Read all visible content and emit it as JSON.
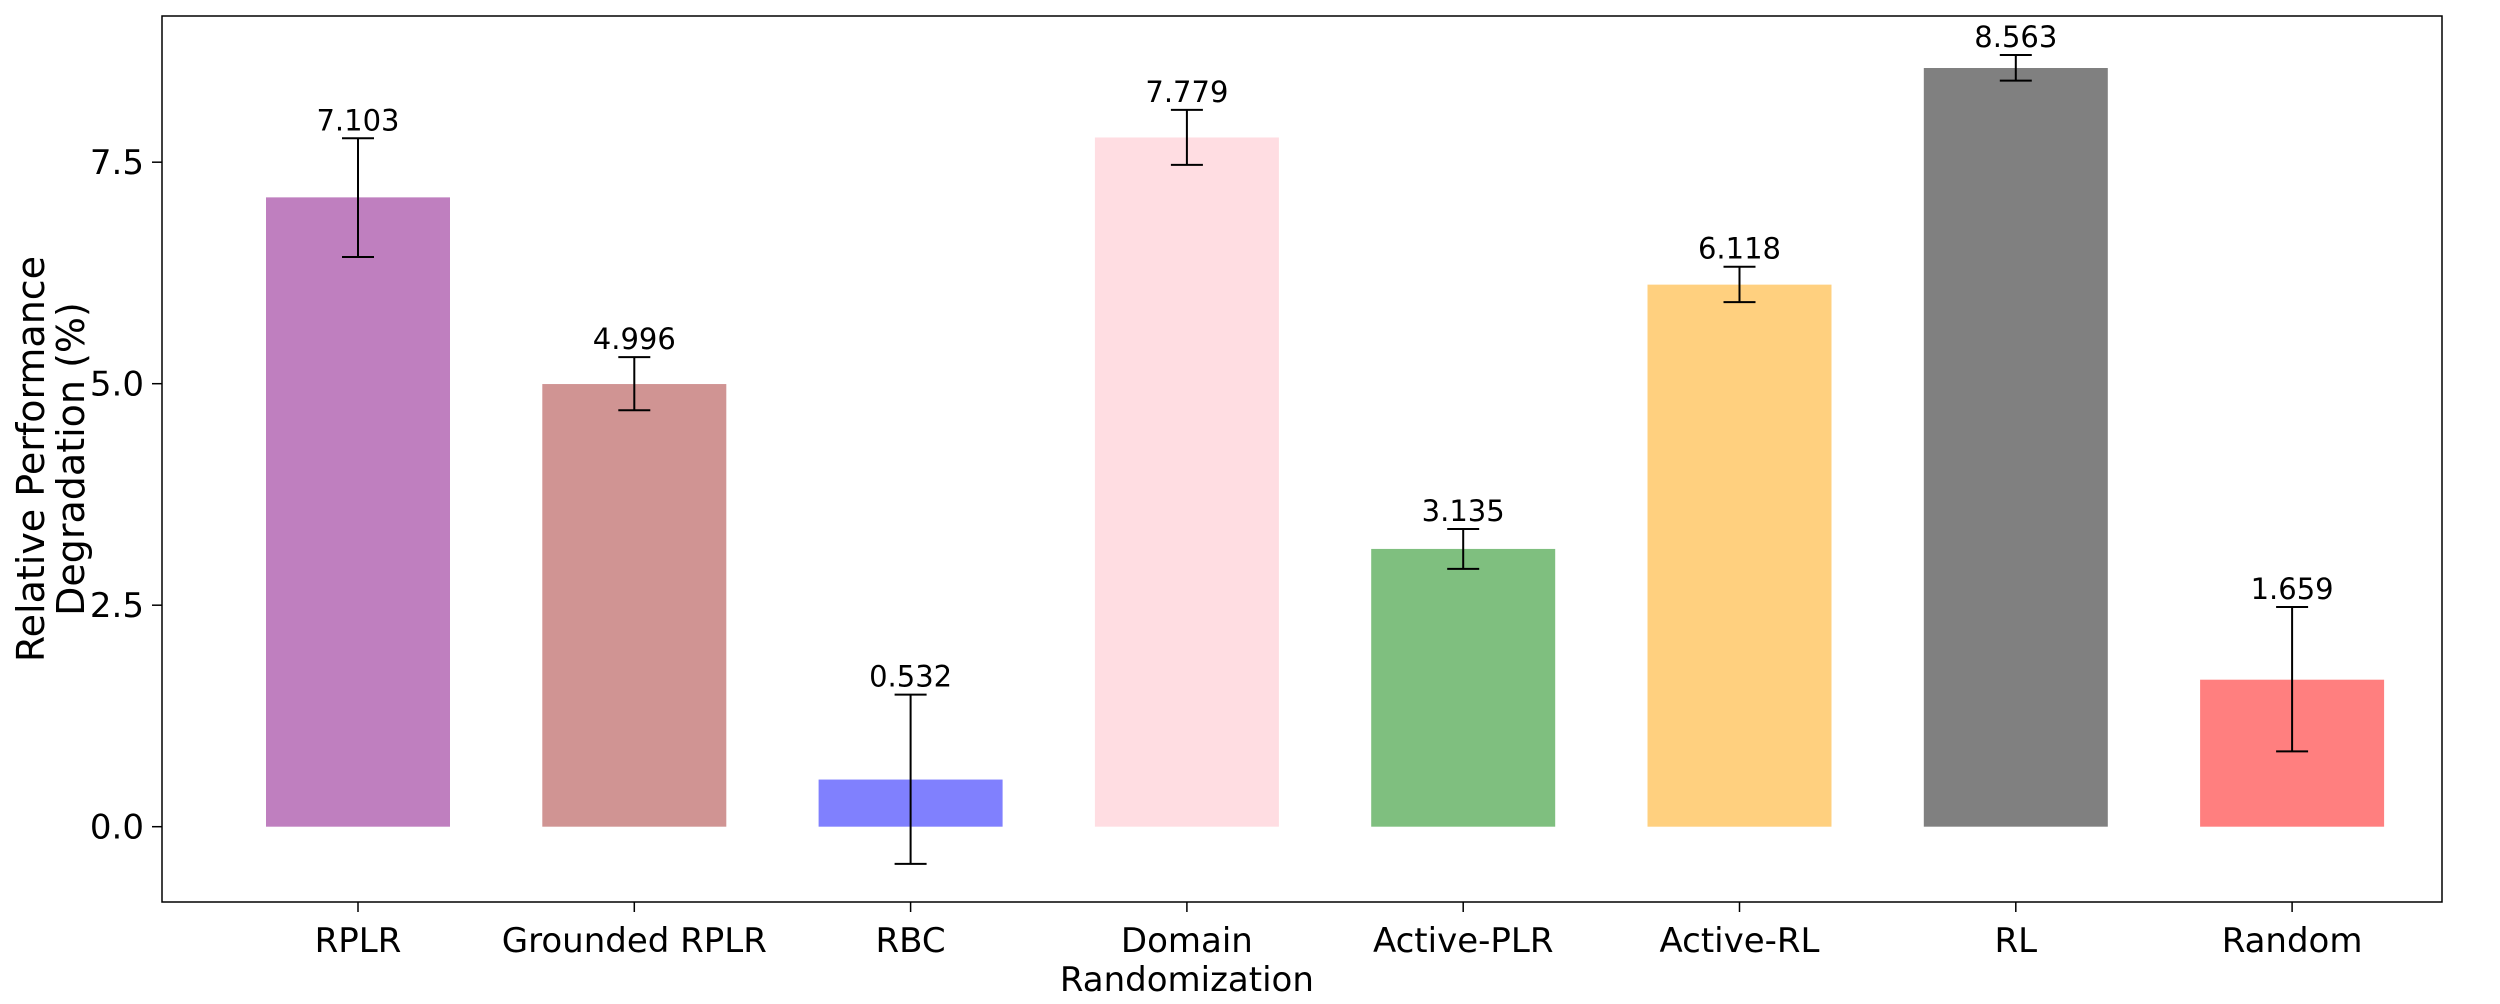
{
  "chart_data": {
    "type": "bar",
    "title": "",
    "xlabel": "",
    "ylabel": [
      "Relative Performance",
      "Degradation (%)"
    ],
    "ylim": [
      -0.85,
      9.15
    ],
    "yticks": [
      "0.0",
      "2.5",
      "5.0",
      "7.5"
    ],
    "ytick_values": [
      0.0,
      2.5,
      5.0,
      7.5
    ],
    "grid": false,
    "legend": "none",
    "categories": [
      [
        "RPLR"
      ],
      [
        "Grounded RPLR"
      ],
      [
        "RBC"
      ],
      [
        "Domain",
        "Randomization"
      ],
      [
        "Active-PLR"
      ],
      [
        "Active-RL"
      ],
      [
        "RL"
      ],
      [
        "Random"
      ]
    ],
    "values": [
      7.103,
      4.996,
      0.532,
      7.779,
      3.135,
      6.118,
      8.563,
      1.659
    ],
    "value_labels": [
      "7.103",
      "4.996",
      "0.532",
      "7.779",
      "3.135",
      "6.118",
      "8.563",
      "1.659"
    ],
    "error_low": [
      6.43,
      4.7,
      -0.42,
      7.47,
      2.91,
      5.92,
      8.42,
      0.85
    ],
    "error_high": [
      7.77,
      5.3,
      1.49,
      8.09,
      3.36,
      6.32,
      8.71,
      2.48
    ],
    "colors": [
      "#bf7fbf",
      "#d09493",
      "#8080fe",
      "#ffdde2",
      "#7fbf7f",
      "#ffd07f",
      "#808080",
      "#ff7f7f"
    ]
  }
}
